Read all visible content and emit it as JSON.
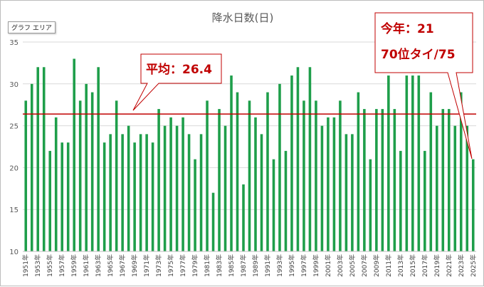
{
  "tooltip": "グラフ エリア",
  "chart_data": {
    "type": "bar",
    "title": "降水日数(日)",
    "ylim": [
      10,
      35
    ],
    "yticks": [
      10,
      15,
      20,
      25,
      30,
      35
    ],
    "grid": true,
    "bar_color": "#1e9e4a",
    "average_line_color": "#c00000",
    "average": 26.4,
    "categories": [
      "1951年",
      "1952年",
      "1953年",
      "1954年",
      "1955年",
      "1956年",
      "1957年",
      "1958年",
      "1959年",
      "1960年",
      "1961年",
      "1962年",
      "1963年",
      "1964年",
      "1965年",
      "1966年",
      "1967年",
      "1968年",
      "1969年",
      "1970年",
      "1971年",
      "1972年",
      "1973年",
      "1974年",
      "1975年",
      "1976年",
      "1977年",
      "1978年",
      "1979年",
      "1980年",
      "1981年",
      "1982年",
      "1983年",
      "1984年",
      "1985年",
      "1986年",
      "1987年",
      "1988年",
      "1989年",
      "1990年",
      "1991年",
      "1992年",
      "1993年",
      "1994年",
      "1995年",
      "1996年",
      "1997年",
      "1998年",
      "1999年",
      "2000年",
      "2001年",
      "2002年",
      "2003年",
      "2004年",
      "2005年",
      "2006年",
      "2007年",
      "2008年",
      "2009年",
      "2010年",
      "2011年",
      "2012年",
      "2013年",
      "2014年",
      "2015年",
      "2016年",
      "2017年",
      "2018年",
      "2019年",
      "2020年",
      "2021年",
      "2022年",
      "2023年",
      "2024年",
      "2025年"
    ],
    "tick_labels": [
      "1951年",
      "1953年",
      "1955年",
      "1957年",
      "1959年",
      "1961年",
      "1963年",
      "1965年",
      "1967年",
      "1969年",
      "1971年",
      "1973年",
      "1975年",
      "1977年",
      "1979年",
      "1981年",
      "1983年",
      "1985年",
      "1987年",
      "1989年",
      "1991年",
      "1993年",
      "1995年",
      "1997年",
      "1999年",
      "2001年",
      "2003年",
      "2005年",
      "2007年",
      "2009年",
      "2011年",
      "2013年",
      "2015年",
      "2017年",
      "2019年",
      "2021年",
      "2023年",
      "2025年"
    ],
    "values": [
      28,
      30,
      32,
      32,
      22,
      26,
      23,
      23,
      33,
      28,
      30,
      29,
      32,
      23,
      24,
      28,
      24,
      25,
      23,
      24,
      24,
      23,
      27,
      25,
      26,
      25,
      26,
      24,
      21,
      24,
      28,
      17,
      27,
      25,
      31,
      29,
      18,
      28,
      26,
      24,
      29,
      21,
      30,
      22,
      31,
      32,
      28,
      32,
      28,
      25,
      26,
      26,
      28,
      24,
      24,
      29,
      27,
      21,
      27,
      27,
      31,
      27,
      22,
      31,
      31,
      31,
      22,
      29,
      25,
      27,
      27,
      25,
      29,
      25,
      21
    ],
    "annotations": [
      {
        "id": "average",
        "lines": [
          "平均：26.4"
        ]
      },
      {
        "id": "this_year",
        "lines": [
          "今年：21",
          "70位タイ/75"
        ]
      }
    ]
  }
}
